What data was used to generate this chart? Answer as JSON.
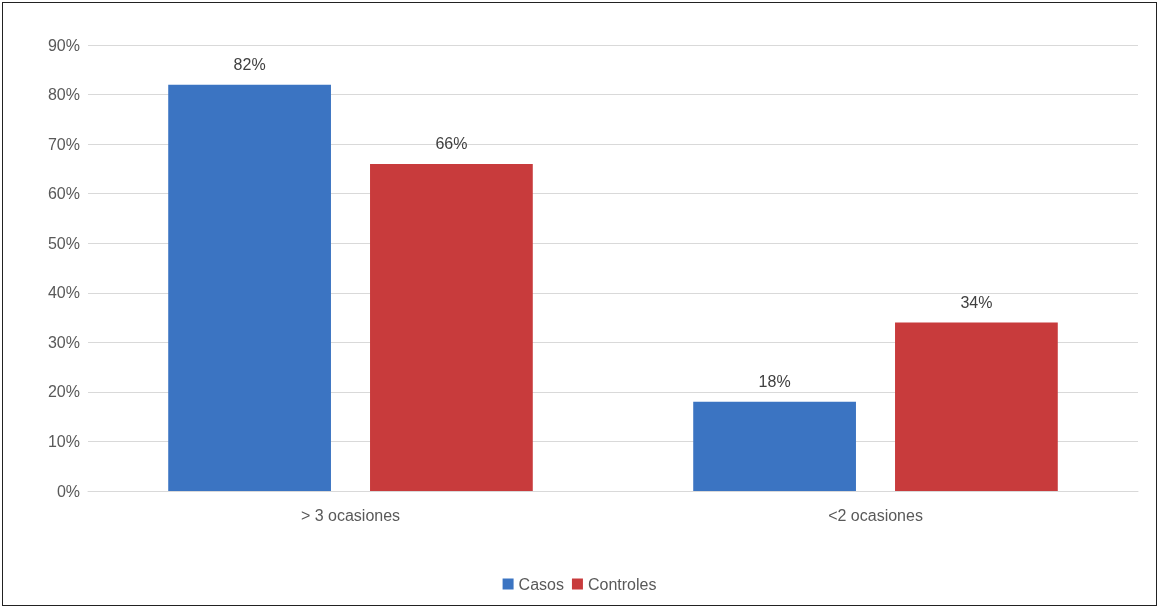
{
  "chart_data": {
    "type": "bar",
    "categories": [
      "> 3 ocasiones",
      "<2 ocasiones"
    ],
    "series": [
      {
        "name": "Casos",
        "color": "#3b74c2",
        "values": [
          82,
          18
        ],
        "value_labels": [
          "82%",
          "18%"
        ]
      },
      {
        "name": "Controles",
        "color": "#c83b3c",
        "values": [
          66,
          34
        ],
        "value_labels": [
          "66%",
          "34%"
        ]
      }
    ],
    "ylim": [
      0,
      90
    ],
    "yticks": [
      {
        "value": 0,
        "label": "0%"
      },
      {
        "value": 10,
        "label": "10%"
      },
      {
        "value": 20,
        "label": "20%"
      },
      {
        "value": 30,
        "label": "30%"
      },
      {
        "value": 40,
        "label": "40%"
      },
      {
        "value": 50,
        "label": "50%"
      },
      {
        "value": 60,
        "label": "60%"
      },
      {
        "value": 70,
        "label": "70%"
      },
      {
        "value": 80,
        "label": "80%"
      },
      {
        "value": 90,
        "label": "90%"
      }
    ],
    "grid": "y",
    "legend": "bottom"
  }
}
